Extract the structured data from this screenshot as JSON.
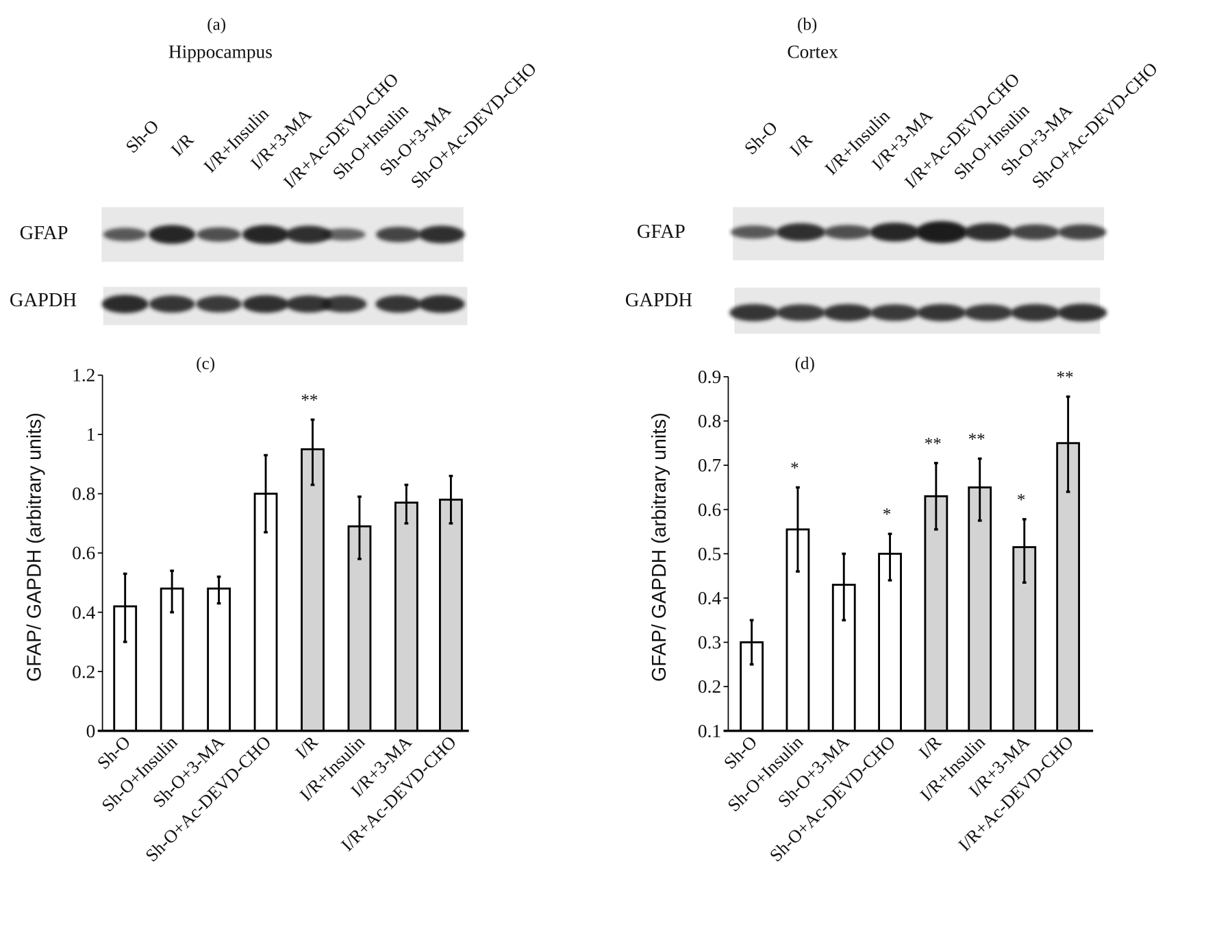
{
  "blots": [
    {
      "panel_label": "(a)",
      "region": "Hippocampus",
      "lanes": [
        "Sh-O",
        "I/R",
        "I/R+Insulin",
        "I/R+3-MA",
        "I/R+Ac-DEVD-CHO",
        "Sh-O+Insulin",
        "Sh-O+3-MA",
        "Sh-O+Ac-DEVD-CHO"
      ],
      "rows": [
        {
          "label": "GFAP",
          "intensity": [
            0.5,
            1.0,
            0.6,
            1.0,
            0.9,
            0.4,
            0.7,
            0.9
          ]
        },
        {
          "label": "GAPDH",
          "intensity": [
            0.95,
            0.85,
            0.8,
            0.9,
            0.85,
            0.8,
            0.85,
            0.9
          ]
        }
      ]
    },
    {
      "panel_label": "(b)",
      "region": "Cortex",
      "lanes": [
        "Sh-O",
        "I/R",
        "I/R+Insulin",
        "I/R+3-MA",
        "I/R+Ac-DEVD-CHO",
        "Sh-O+Insulin",
        "Sh-O+3-MA",
        "Sh-O+Ac-DEVD-CHO"
      ],
      "rows": [
        {
          "label": "GFAP",
          "intensity": [
            0.5,
            0.9,
            0.6,
            1.0,
            1.3,
            0.9,
            0.7,
            0.7
          ]
        },
        {
          "label": "GAPDH",
          "intensity": [
            0.85,
            0.8,
            0.85,
            0.8,
            0.85,
            0.8,
            0.85,
            0.9
          ]
        }
      ]
    }
  ],
  "chart_data": [
    {
      "type": "bar",
      "panel_label": "(c)",
      "ylabel": "GFAP/ GAPDH (arbitrary units)",
      "xlabel": "",
      "ylim": [
        0,
        1.2
      ],
      "yticks": [
        0,
        0.2,
        0.4,
        0.6,
        0.8,
        1,
        1.2
      ],
      "ytick_labels": [
        "0",
        "0.2",
        "0.4",
        "0.6",
        "0.8",
        "1",
        "1.2"
      ],
      "categories": [
        "Sh-O",
        "Sh-O+Insulin",
        "Sh-O+3-MA",
        "Sh-O+Ac-DEVD-CHO",
        "I/R",
        "I/R+Insulin",
        "I/R+3-MA",
        "I/R+Ac-DEVD-CHO"
      ],
      "values": [
        0.42,
        0.48,
        0.48,
        0.8,
        0.95,
        0.69,
        0.77,
        0.78
      ],
      "err_low": [
        0.3,
        0.4,
        0.43,
        0.67,
        0.83,
        0.58,
        0.7,
        0.7
      ],
      "err_high": [
        0.53,
        0.54,
        0.52,
        0.93,
        1.05,
        0.79,
        0.83,
        0.86
      ],
      "significance": [
        "",
        "",
        "",
        "",
        "**",
        "",
        "",
        ""
      ],
      "fill": [
        "#ffffff",
        "#ffffff",
        "#ffffff",
        "#ffffff",
        "#d3d3d3",
        "#d3d3d3",
        "#d3d3d3",
        "#d3d3d3"
      ],
      "grid": false
    },
    {
      "type": "bar",
      "panel_label": "(d)",
      "ylabel": "GFAP/ GAPDH (arbitrary units)",
      "xlabel": "",
      "ylim": [
        0.1,
        0.9
      ],
      "yticks": [
        0.1,
        0.2,
        0.3,
        0.4,
        0.5,
        0.6,
        0.7,
        0.8,
        0.9
      ],
      "ytick_labels": [
        "0.1",
        "0.2",
        "0.3",
        "0.4",
        "0.5",
        "0.6",
        "0.7",
        "0.8",
        "0.9"
      ],
      "categories": [
        "Sh-O",
        "Sh-O+Insulin",
        "Sh-O+3-MA",
        "Sh-O+Ac-DEVD-CHO",
        "I/R",
        "I/R+Insulin",
        "I/R+3-MA",
        "I/R+Ac-DEVD-CHO"
      ],
      "values": [
        0.3,
        0.555,
        0.43,
        0.5,
        0.63,
        0.65,
        0.515,
        0.75
      ],
      "err_low": [
        0.25,
        0.46,
        0.35,
        0.44,
        0.555,
        0.575,
        0.435,
        0.64
      ],
      "err_high": [
        0.35,
        0.65,
        0.5,
        0.545,
        0.705,
        0.715,
        0.578,
        0.855
      ],
      "significance": [
        "",
        "*",
        "",
        "*",
        "**",
        "**",
        "*",
        "**"
      ],
      "fill": [
        "#ffffff",
        "#ffffff",
        "#ffffff",
        "#ffffff",
        "#d3d3d3",
        "#d3d3d3",
        "#d3d3d3",
        "#d3d3d3"
      ],
      "grid": false
    }
  ]
}
